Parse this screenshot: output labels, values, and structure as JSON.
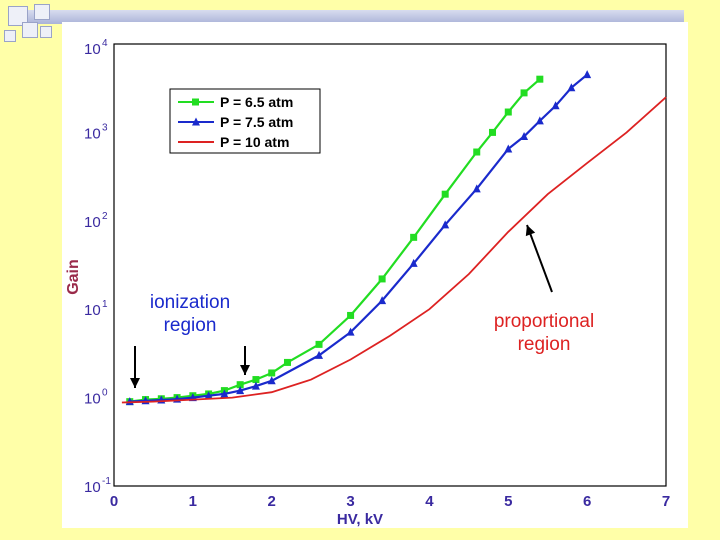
{
  "chart_data": {
    "type": "line",
    "xlabel": "HV, kV",
    "ylabel": "Gain",
    "x_range": [
      0,
      7
    ],
    "y_range_log10": [
      -1,
      4
    ],
    "x_ticks": [
      "0",
      "1",
      "2",
      "3",
      "4",
      "5",
      "6",
      "7"
    ],
    "y_ticks": [
      {
        "base": "10",
        "exp": "-1"
      },
      {
        "base": "10",
        "exp": "0"
      },
      {
        "base": "10",
        "exp": "1"
      },
      {
        "base": "10",
        "exp": "2"
      },
      {
        "base": "10",
        "exp": "3"
      },
      {
        "base": "10",
        "exp": "4"
      }
    ],
    "grid": true,
    "legend_position": "top-left",
    "series": [
      {
        "name": "P = 6.5 atm",
        "color": "#22dd22",
        "marker": "square",
        "x": [
          0.2,
          0.4,
          0.6,
          0.8,
          1.0,
          1.2,
          1.4,
          1.6,
          1.8,
          2.0,
          2.2,
          2.6,
          3.0,
          3.4,
          3.8,
          4.2,
          4.6,
          4.8,
          5.0,
          5.2,
          5.4
        ],
        "y": [
          0.9,
          0.95,
          0.97,
          1.0,
          1.05,
          1.1,
          1.2,
          1.4,
          1.6,
          1.9,
          2.5,
          4.0,
          8.5,
          22,
          65,
          200,
          600,
          1000,
          1700,
          2800,
          4000
        ]
      },
      {
        "name": "P = 7.5 atm",
        "color": "#1a2acc",
        "marker": "triangle",
        "x": [
          0.2,
          0.4,
          0.6,
          0.8,
          1.0,
          1.2,
          1.4,
          1.6,
          1.8,
          2.0,
          2.6,
          3.0,
          3.4,
          3.8,
          4.2,
          4.6,
          5.0,
          5.2,
          5.4,
          5.6,
          5.8,
          6.0
        ],
        "y": [
          0.9,
          0.92,
          0.94,
          0.96,
          1.0,
          1.05,
          1.1,
          1.2,
          1.35,
          1.55,
          3.0,
          5.5,
          12.5,
          33,
          90,
          230,
          650,
          900,
          1350,
          2000,
          3200,
          4500
        ]
      },
      {
        "name": "P = 10 atm",
        "color": "#dd2222",
        "marker": "none",
        "x": [
          0.1,
          0.5,
          1.0,
          1.5,
          2.0,
          2.5,
          3.0,
          3.5,
          4.0,
          4.5,
          5.0,
          5.5,
          6.0,
          6.5,
          7.0
        ],
        "y": [
          0.88,
          0.9,
          0.95,
          1.0,
          1.15,
          1.6,
          2.7,
          5.0,
          10.0,
          25,
          75,
          200,
          450,
          1000,
          2500
        ]
      }
    ],
    "annotations": [
      {
        "text_lines": [
          "ionization",
          "region"
        ],
        "color": "#1a2acc"
      },
      {
        "text_lines": [
          "proportional",
          "region"
        ],
        "color": "#dd2222"
      }
    ]
  },
  "colors": {
    "background": "#ffffa8",
    "panel": "#ffffff",
    "axis_text": "#3a2aa0",
    "ylabel": "#9a2a4a",
    "grid": "#222222"
  }
}
